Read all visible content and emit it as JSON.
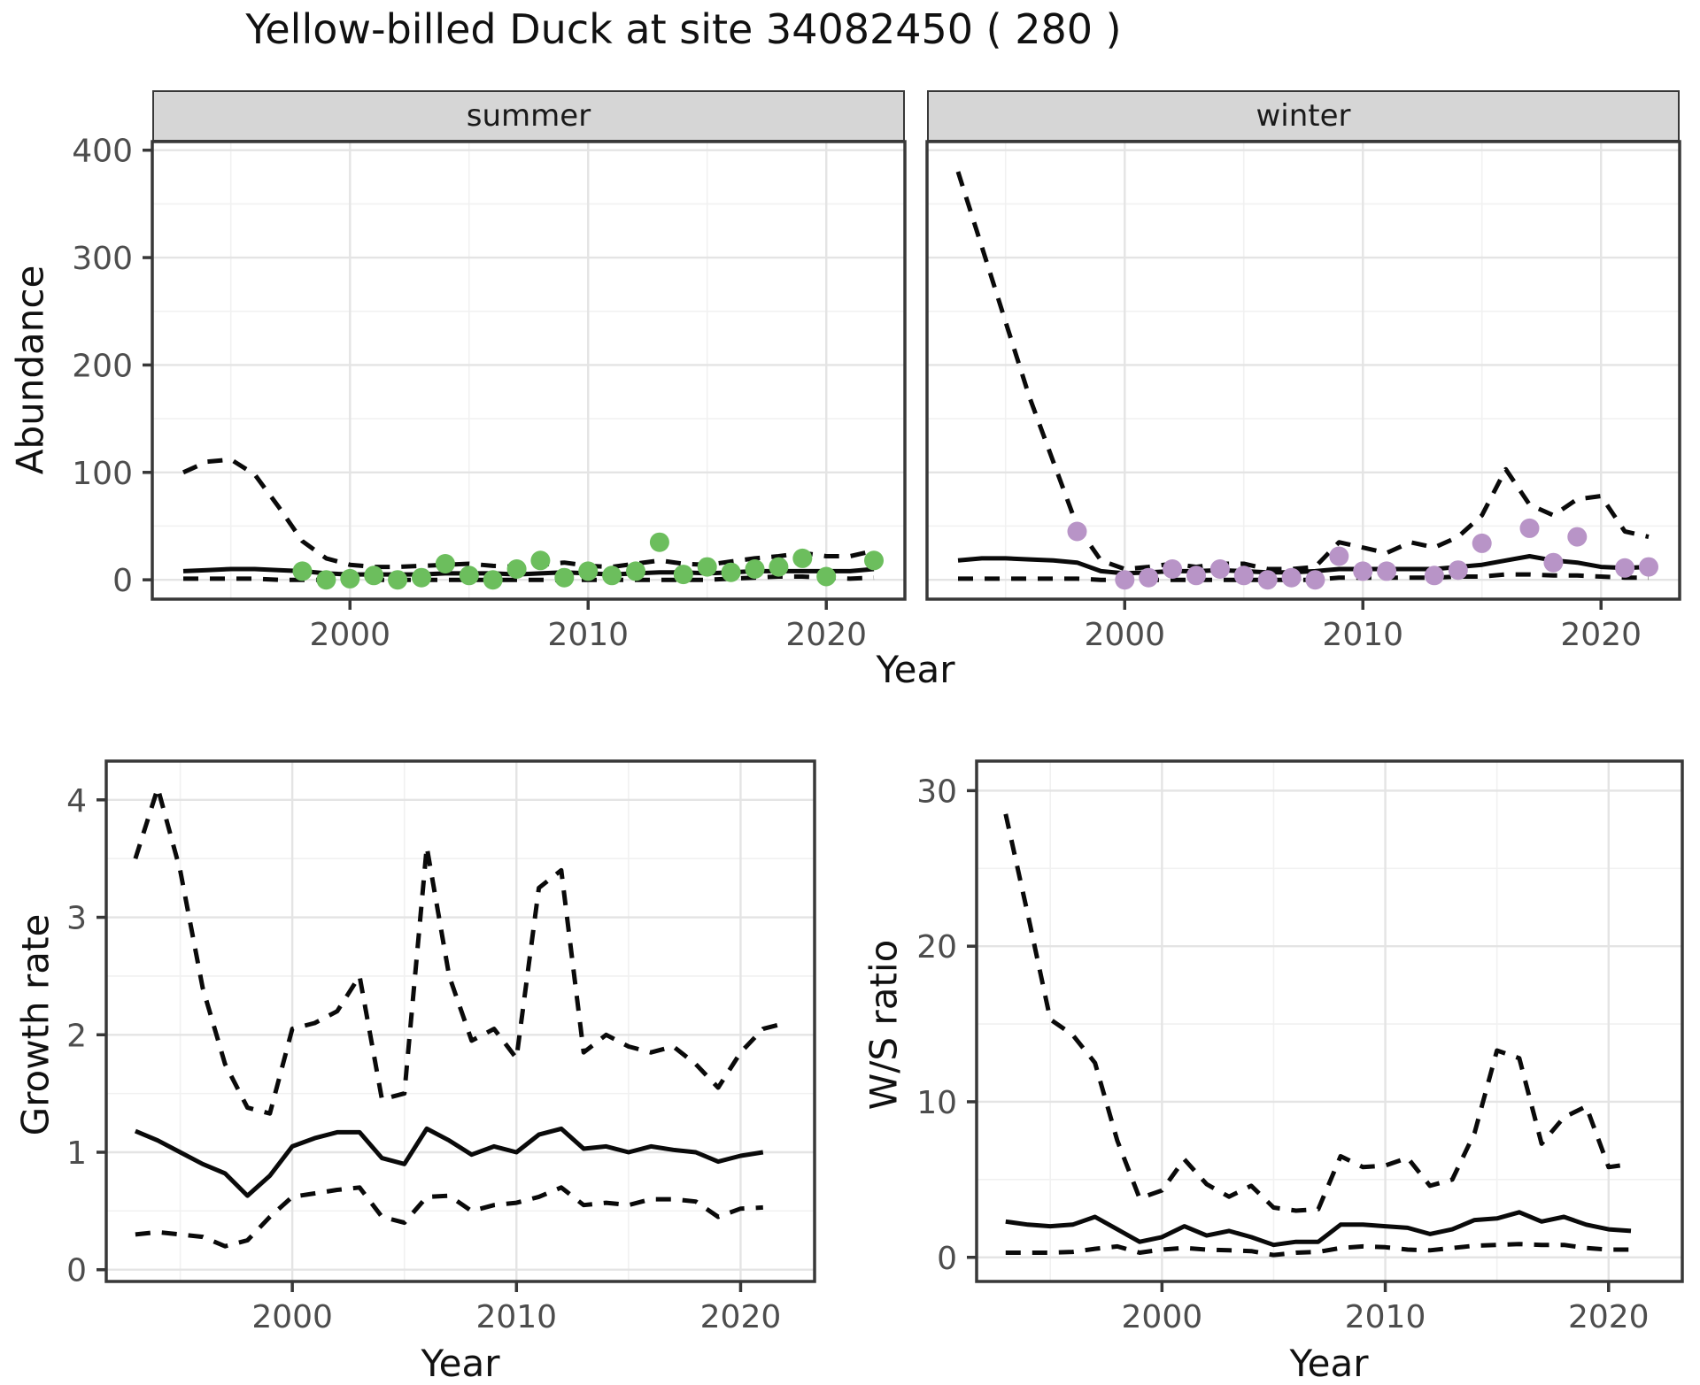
{
  "title": "Yellow-billed Duck at site 34082450 ( 280 )",
  "colors": {
    "summer_dot": "#6CBE5D",
    "winter_dot": "#B894C7",
    "line": "#0A0A0A",
    "strip_bg": "#D6D6D6",
    "grid_major": "#E4E4E4",
    "grid_minor": "#F1F1F1",
    "axis_text": "#4D4D4D",
    "panel_border": "#383838"
  },
  "chart_data": {
    "abundance": {
      "type": "line",
      "ylabel": "Abundance",
      "xlabel": "Year",
      "ylim": [
        -18,
        408
      ],
      "yticks": [
        0,
        100,
        200,
        300,
        400
      ],
      "yminor": [
        50,
        150,
        250,
        350
      ],
      "xlim": [
        1991.7,
        2023.3
      ],
      "xticks": [
        2000,
        2010,
        2020
      ],
      "xminor": [
        1995,
        2005,
        2015
      ],
      "years": [
        1993,
        1994,
        1995,
        1996,
        1997,
        1998,
        1999,
        2000,
        2001,
        2002,
        2003,
        2004,
        2005,
        2006,
        2007,
        2008,
        2009,
        2010,
        2011,
        2012,
        2013,
        2014,
        2015,
        2016,
        2017,
        2018,
        2019,
        2020,
        2021,
        2022
      ],
      "legend": {
        "fit_line": "solid",
        "confidence_interval": "dashed",
        "observations": "dots"
      },
      "facets": [
        {
          "label": "summer",
          "point_color": "#6CBE5D",
          "fit": [
            8,
            9,
            10,
            10,
            9,
            8,
            6,
            5,
            5,
            5,
            5,
            6,
            6,
            6,
            5,
            6,
            7,
            6,
            5,
            6,
            7,
            7,
            6,
            7,
            8,
            8,
            8,
            8,
            8,
            10
          ],
          "upper_ci": [
            100,
            110,
            112,
            98,
            68,
            36,
            20,
            14,
            12,
            12,
            13,
            14,
            15,
            13,
            12,
            14,
            16,
            13,
            12,
            15,
            18,
            15,
            14,
            17,
            20,
            22,
            25,
            22,
            22,
            27
          ],
          "lower_ci": [
            1,
            1,
            1,
            1,
            0,
            0,
            0,
            0,
            0,
            0,
            0,
            0,
            0,
            0,
            0,
            0,
            0,
            0,
            0,
            0,
            0,
            0,
            0,
            1,
            2,
            3,
            3,
            2,
            1,
            2
          ],
          "obs_years": [
            1998,
            1999,
            2000,
            2001,
            2002,
            2003,
            2004,
            2005,
            2006,
            2007,
            2008,
            2009,
            2010,
            2011,
            2012,
            2013,
            2014,
            2015,
            2016,
            2017,
            2018,
            2019,
            2020,
            2022
          ],
          "obs_values": [
            8,
            0,
            1,
            4,
            0,
            2,
            15,
            4,
            0,
            10,
            18,
            2,
            8,
            4,
            8,
            35,
            5,
            12,
            7,
            10,
            12,
            20,
            3,
            18
          ]
        },
        {
          "label": "winter",
          "point_color": "#B894C7",
          "fit": [
            18,
            20,
            20,
            19,
            18,
            16,
            8,
            6,
            7,
            8,
            8,
            9,
            8,
            7,
            7,
            8,
            10,
            10,
            10,
            10,
            10,
            12,
            14,
            18,
            22,
            18,
            16,
            12,
            11,
            12
          ],
          "upper_ci": [
            380,
            310,
            240,
            170,
            110,
            50,
            18,
            10,
            12,
            15,
            12,
            15,
            15,
            10,
            10,
            12,
            35,
            30,
            25,
            35,
            30,
            40,
            60,
            103,
            70,
            60,
            75,
            78,
            45,
            40
          ],
          "lower_ci": [
            1,
            1,
            1,
            1,
            1,
            1,
            0,
            0,
            0,
            0,
            0,
            0,
            0,
            0,
            0,
            0,
            2,
            2,
            2,
            2,
            2,
            3,
            3,
            5,
            5,
            4,
            4,
            3,
            2,
            2
          ],
          "obs_years": [
            1998,
            2000,
            2001,
            2002,
            2003,
            2004,
            2005,
            2006,
            2007,
            2008,
            2009,
            2010,
            2011,
            2013,
            2014,
            2015,
            2017,
            2018,
            2019,
            2021,
            2022
          ],
          "obs_values": [
            45,
            0,
            2,
            10,
            4,
            10,
            4,
            0,
            2,
            0,
            22,
            8,
            8,
            4,
            9,
            34,
            48,
            16,
            40,
            11,
            12
          ]
        }
      ]
    },
    "growth_rate": {
      "type": "line",
      "ylabel": "Growth rate",
      "xlabel": "Year",
      "ylim": [
        -0.1,
        4.33
      ],
      "yticks": [
        0,
        1,
        2,
        3,
        4
      ],
      "yminor": [
        0.5,
        1.5,
        2.5,
        3.5
      ],
      "xlim": [
        1991.7,
        2023.3
      ],
      "xticks": [
        2000,
        2010,
        2020
      ],
      "xminor": [
        1995,
        2005,
        2015
      ],
      "years": [
        1993,
        1994,
        1995,
        1996,
        1997,
        1998,
        1999,
        2000,
        2001,
        2002,
        2003,
        2004,
        2005,
        2006,
        2007,
        2008,
        2009,
        2010,
        2011,
        2012,
        2013,
        2014,
        2015,
        2016,
        2017,
        2018,
        2019,
        2020,
        2021
      ],
      "fit": [
        1.18,
        1.1,
        1.0,
        0.9,
        0.82,
        0.63,
        0.8,
        1.05,
        1.12,
        1.17,
        1.17,
        0.95,
        0.9,
        1.2,
        1.1,
        0.98,
        1.05,
        1.0,
        1.15,
        1.2,
        1.03,
        1.05,
        1.0,
        1.05,
        1.02,
        1.0,
        0.92,
        0.97,
        1.0
      ],
      "lower_ci": [
        0.3,
        0.32,
        0.3,
        0.28,
        0.2,
        0.25,
        0.45,
        0.62,
        0.65,
        0.68,
        0.7,
        0.45,
        0.4,
        0.62,
        0.63,
        0.5,
        0.55,
        0.57,
        0.62,
        0.7,
        0.55,
        0.57,
        0.55,
        0.6,
        0.6,
        0.58,
        0.45,
        0.52,
        0.53
      ],
      "upper_years": [
        1993,
        1994,
        1995,
        1996,
        1997,
        1998,
        1999,
        2000,
        2001,
        2002,
        2003,
        2004,
        2005,
        2006,
        2007,
        2008,
        2009,
        2010,
        2011,
        2012,
        2013,
        2014,
        2015,
        2016,
        2017,
        2018,
        2019,
        2020,
        2021,
        2022
      ],
      "upper_ci": [
        3.5,
        4.1,
        3.4,
        2.4,
        1.75,
        1.38,
        1.33,
        2.05,
        2.1,
        2.2,
        2.5,
        1.45,
        1.5,
        3.6,
        2.5,
        1.95,
        2.05,
        1.8,
        3.25,
        3.4,
        1.85,
        2.0,
        1.9,
        1.85,
        1.9,
        1.75,
        1.55,
        1.85,
        2.05,
        2.1
      ]
    },
    "ws_ratio": {
      "type": "line",
      "ylabel": "W/S ratio",
      "xlabel": "Year",
      "ylim": [
        -1.55,
        31.9
      ],
      "yticks": [
        0,
        10,
        20,
        30
      ],
      "yminor": [
        5,
        15,
        25
      ],
      "xlim": [
        1991.7,
        2023.3
      ],
      "xticks": [
        2000,
        2010,
        2020
      ],
      "xminor": [
        1995,
        2005,
        2015
      ],
      "years": [
        1993,
        1994,
        1995,
        1996,
        1997,
        1998,
        1999,
        2000,
        2001,
        2002,
        2003,
        2004,
        2005,
        2006,
        2007,
        2008,
        2009,
        2010,
        2011,
        2012,
        2013,
        2014,
        2015,
        2016,
        2017,
        2018,
        2019,
        2020,
        2021
      ],
      "fit": [
        2.3,
        2.1,
        2.0,
        2.1,
        2.6,
        1.8,
        1.0,
        1.3,
        2.0,
        1.4,
        1.7,
        1.3,
        0.8,
        1.0,
        1.0,
        2.1,
        2.1,
        2.0,
        1.9,
        1.5,
        1.8,
        2.4,
        2.5,
        2.9,
        2.3,
        2.6,
        2.1,
        1.8,
        1.7
      ],
      "upper_ci": [
        28.5,
        22,
        15.3,
        14.3,
        12.5,
        7.5,
        3.8,
        4.3,
        6.3,
        4.7,
        3.9,
        4.6,
        3.2,
        3.0,
        3.1,
        6.5,
        5.8,
        5.9,
        6.4,
        4.6,
        5.0,
        8.0,
        13.3,
        12.8,
        7.3,
        9.0,
        9.7,
        5.8,
        6.0
      ],
      "lower_ci": [
        0.3,
        0.3,
        0.3,
        0.35,
        0.55,
        0.7,
        0.3,
        0.5,
        0.6,
        0.5,
        0.45,
        0.4,
        0.15,
        0.3,
        0.35,
        0.6,
        0.7,
        0.65,
        0.5,
        0.45,
        0.6,
        0.75,
        0.8,
        0.85,
        0.8,
        0.8,
        0.6,
        0.5,
        0.5
      ]
    }
  }
}
